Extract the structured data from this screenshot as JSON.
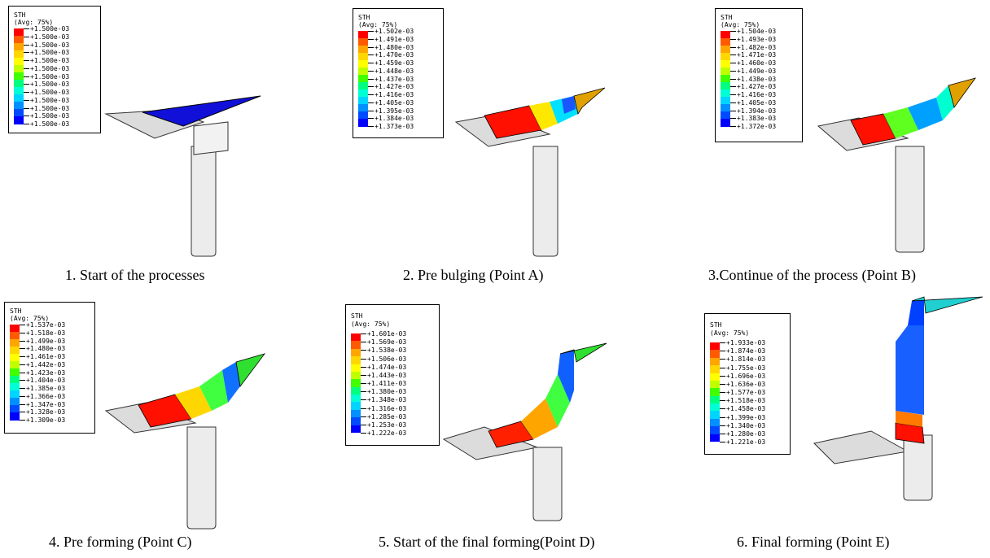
{
  "colormap": [
    "#ff0000",
    "#ff5a00",
    "#ffa500",
    "#ffd700",
    "#ffff00",
    "#bfff00",
    "#40ff00",
    "#00ff7f",
    "#00ffd5",
    "#00d5ff",
    "#0090ff",
    "#004bff",
    "#0000ff"
  ],
  "panels": [
    {
      "header": "STH",
      "avg": "(Avg: 75%)",
      "values": [
        "+1.500e-03",
        "+1.500e-03",
        "+1.500e-03",
        "+1.500e-03",
        "+1.500e-03",
        "+1.500e-03",
        "+1.500e-03",
        "+1.500e-03",
        "+1.500e-03",
        "+1.500e-03",
        "+1.500e-03",
        "+1.500e-03",
        "+1.500e-03"
      ],
      "caption": "1. Start of the processes"
    },
    {
      "header": "STH",
      "avg": "(Avg: 75%)",
      "values": [
        "+1.502e-03",
        "+1.491e-03",
        "+1.480e-03",
        "+1.470e-03",
        "+1.459e-03",
        "+1.448e-03",
        "+1.437e-03",
        "+1.427e-03",
        "+1.416e-03",
        "+1.405e-03",
        "+1.395e-03",
        "+1.384e-03",
        "+1.373e-03"
      ],
      "caption": "2. Pre bulging  (Point A)"
    },
    {
      "header": "STH",
      "avg": "(Avg: 75%)",
      "values": [
        "+1.504e-03",
        "+1.493e-03",
        "+1.482e-03",
        "+1.471e-03",
        "+1.460e-03",
        "+1.449e-03",
        "+1.438e-03",
        "+1.427e-03",
        "+1.416e-03",
        "+1.405e-03",
        "+1.394e-03",
        "+1.383e-03",
        "+1.372e-03"
      ],
      "caption": "3.Continue of the process (Point B)"
    },
    {
      "header": "STH",
      "avg": "(Avg: 75%)",
      "values": [
        "+1.537e-03",
        "+1.518e-03",
        "+1.499e-03",
        "+1.480e-03",
        "+1.461e-03",
        "+1.442e-03",
        "+1.423e-03",
        "+1.404e-03",
        "+1.385e-03",
        "+1.366e-03",
        "+1.347e-03",
        "+1.328e-03",
        "+1.309e-03"
      ],
      "caption": "4. Pre forming (Point C)"
    },
    {
      "header": "STH",
      "avg": "(Avg: 75%)",
      "values": [
        "+1.601e-03",
        "+1.569e-03",
        "+1.538e-03",
        "+1.506e-03",
        "+1.474e-03",
        "+1.443e-03",
        "+1.411e-03",
        "+1.380e-03",
        "+1.348e-03",
        "+1.316e-03",
        "+1.285e-03",
        "+1.253e-03",
        "+1.222e-03"
      ],
      "caption": "5. Start of the final forming(Point D)"
    },
    {
      "header": "STH",
      "avg": "(Avg: 75%)",
      "values": [
        "+1.933e-03",
        "+1.874e-03",
        "+1.814e-03",
        "+1.755e-03",
        "+1.696e-03",
        "+1.636e-03",
        "+1.577e-03",
        "+1.518e-03",
        "+1.458e-03",
        "+1.399e-03",
        "+1.340e-03",
        "+1.280e-03",
        "+1.221e-03"
      ],
      "caption": "6. Final forming (Point E)"
    }
  ]
}
